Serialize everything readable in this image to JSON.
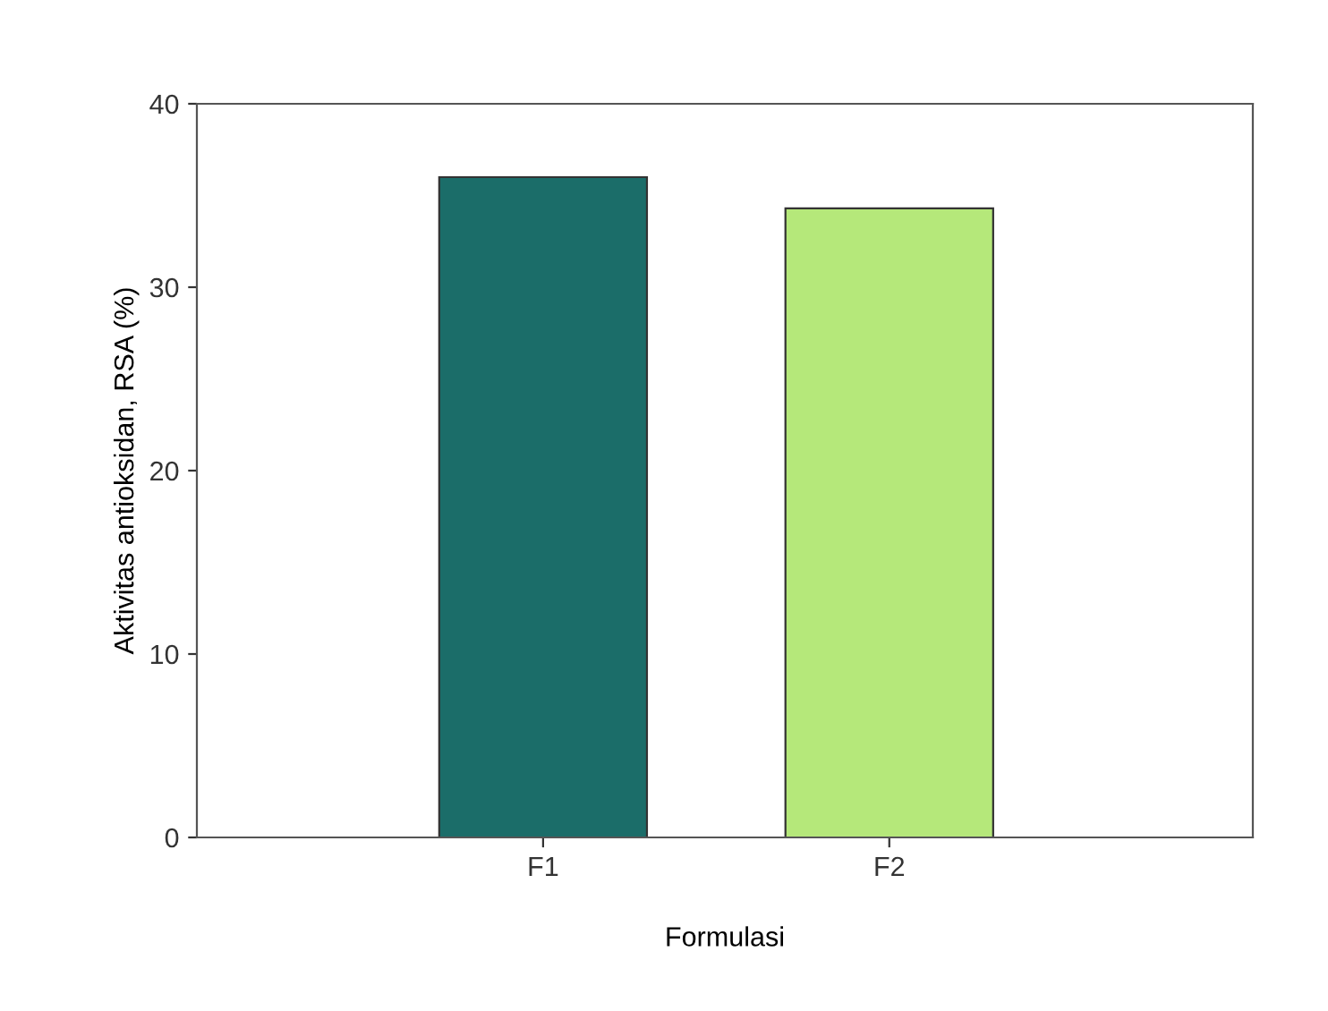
{
  "chart_data": {
    "type": "bar",
    "xlabel": "Formulasi",
    "ylabel": "Aktivitas antioksidan, RSA (%)",
    "categories": [
      "F1",
      "F2"
    ],
    "values": [
      36.0,
      34.3
    ],
    "colors": [
      "#1b6d69",
      "#b5e87a"
    ],
    "ylim": [
      0,
      40
    ],
    "yticks": [
      0,
      10,
      20,
      30,
      40
    ],
    "grid": false,
    "legend": false
  }
}
